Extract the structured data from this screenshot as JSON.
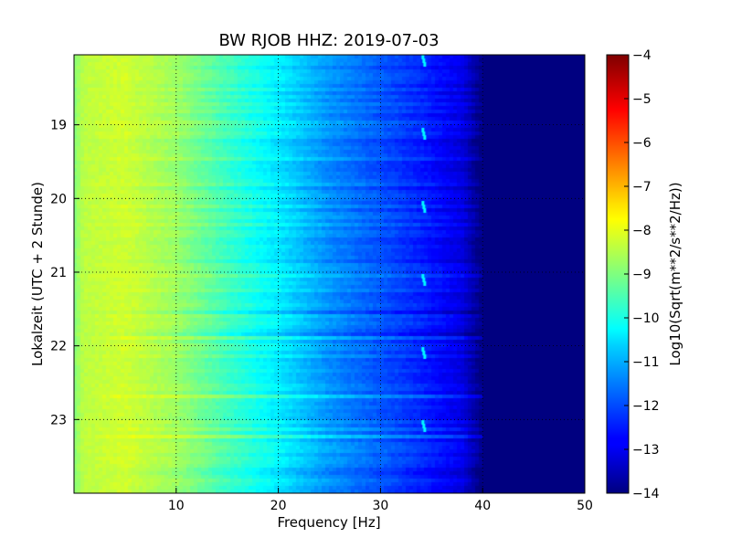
{
  "chart_data": {
    "type": "heatmap",
    "title": "BW RJOB HHZ: 2019-07-03",
    "xlabel": "Frequency [Hz]",
    "ylabel": "Lokalzeit (UTC + 2 Stunde)",
    "xlim": [
      0,
      50
    ],
    "ylim": [
      24,
      18.05
    ],
    "x_ticks": [
      10,
      20,
      30,
      40,
      50
    ],
    "y_ticks": [
      19,
      20,
      21,
      22,
      23
    ],
    "grid": true,
    "colormap": "jet",
    "colorbar": {
      "label": "Log10(Sqrt(m**2/s**2/Hz))",
      "range": [
        -14,
        -4
      ],
      "ticks": [
        -4,
        -5,
        -6,
        -7,
        -8,
        -9,
        -10,
        -11,
        -12,
        -13,
        -14
      ]
    },
    "spectrum_profile": {
      "frequency_hz": [
        0,
        1,
        5,
        10,
        15,
        20,
        25,
        30,
        34,
        38,
        40,
        50
      ],
      "log10_amplitude": [
        -9.0,
        -8.4,
        -8.2,
        -8.7,
        -9.6,
        -10.4,
        -11.3,
        -11.9,
        -12.4,
        -13.0,
        -14.0,
        -14.0
      ]
    },
    "narrowband_feature": {
      "frequency_hz": 34.2,
      "log10_amplitude": -10.6
    }
  }
}
